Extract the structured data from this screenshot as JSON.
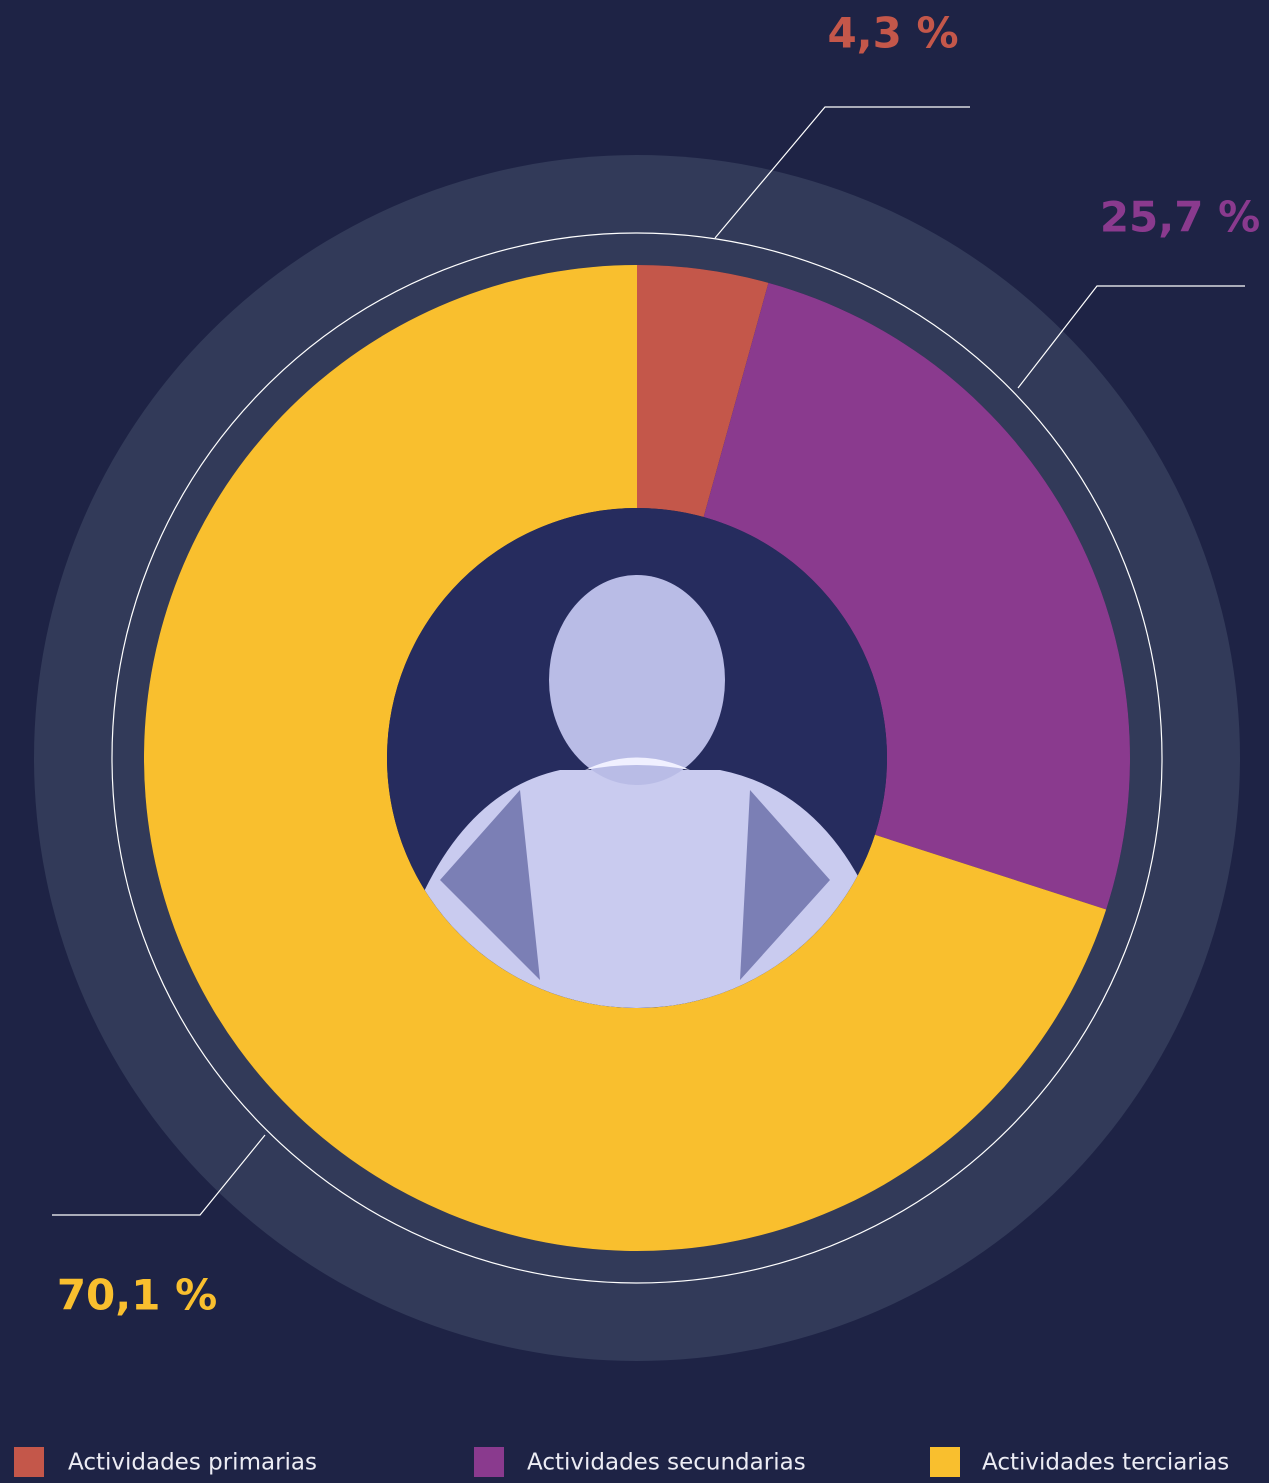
{
  "chart_data": {
    "type": "donut",
    "categories": [
      "Actividades primarias",
      "Actividades secundarias",
      "Actividades terciarias"
    ],
    "values": [
      4.3,
      25.7,
      70.1
    ],
    "value_labels": [
      "4,3 %",
      "25,7 %",
      "70,1 %"
    ],
    "colors": [
      "#c4574a",
      "#8a3a8e",
      "#f9bf2e"
    ],
    "legend": "bottom"
  }
}
